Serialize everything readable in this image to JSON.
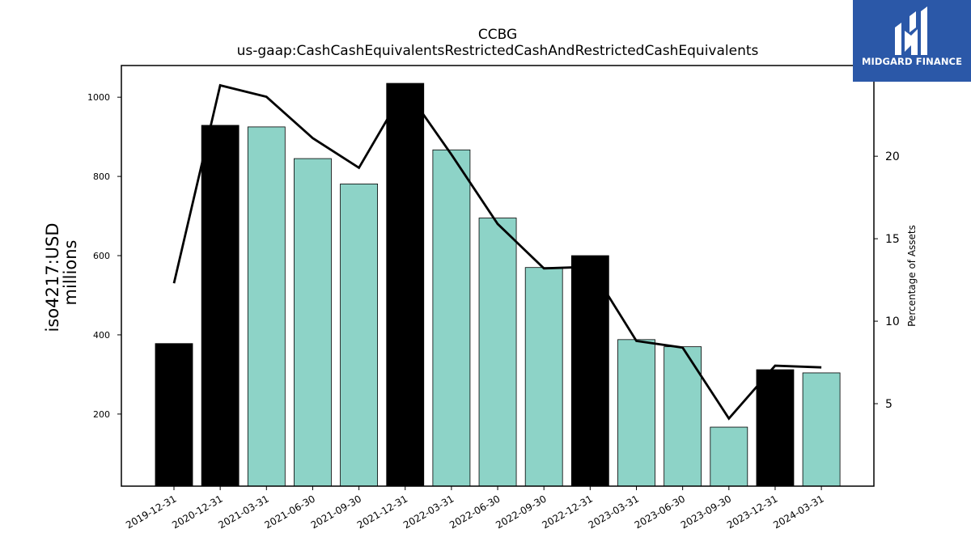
{
  "chart_data": {
    "type": "bar",
    "title": "CCBG",
    "subtitle": "us-gaap:CashCashEquivalentsRestrictedCashAndRestrictedCashEquivalents",
    "ylabel_left": [
      "iso4217:USD",
      "millions"
    ],
    "ylabel_right": "Percentage of Assets",
    "categories": [
      "2019-12-31",
      "2020-12-31",
      "2021-03-31",
      "2021-06-30",
      "2021-09-30",
      "2021-12-31",
      "2022-03-31",
      "2022-06-30",
      "2022-09-30",
      "2022-12-31",
      "2023-03-31",
      "2023-06-30",
      "2023-09-30",
      "2023-12-31",
      "2024-03-31"
    ],
    "series": [
      {
        "type": "bar",
        "values": [
          378,
          929,
          925,
          845,
          781,
          1035,
          867,
          695,
          570,
          600,
          388,
          370,
          167,
          312,
          304
        ],
        "colors": [
          "#000000",
          "#000000",
          "#8dd3c7",
          "#8dd3c7",
          "#8dd3c7",
          "#000000",
          "#8dd3c7",
          "#8dd3c7",
          "#8dd3c7",
          "#000000",
          "#8dd3c7",
          "#8dd3c7",
          "#8dd3c7",
          "#000000",
          "#8dd3c7"
        ]
      },
      {
        "type": "line",
        "axis": "right",
        "values": [
          12.3,
          24.3,
          23.6,
          21.1,
          19.3,
          24.1,
          20.1,
          15.9,
          13.2,
          13.3,
          8.8,
          8.4,
          4.1,
          7.3,
          7.2
        ]
      }
    ],
    "yticks_left": [
      200,
      400,
      600,
      800,
      1000
    ],
    "ylim_left": [
      18,
      1080
    ],
    "yticks_right": [
      5,
      10,
      15,
      20
    ],
    "ylim_right": [
      0,
      25.5
    ],
    "grid": false,
    "legend": "none"
  },
  "logo": {
    "text": "MIDGARD FINANCE",
    "color": "#2b58a8"
  }
}
